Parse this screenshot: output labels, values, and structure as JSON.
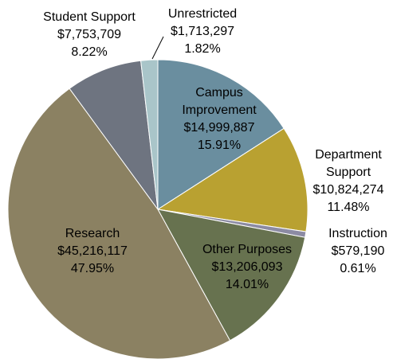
{
  "chart_data": {
    "type": "pie",
    "categories": [
      "Campus Improvement",
      "Department Support",
      "Instruction",
      "Other Purposes",
      "Research",
      "Student Support",
      "Unrestricted"
    ],
    "values": [
      14999887,
      10824274,
      579190,
      13206093,
      45216117,
      7753709,
      1713297
    ],
    "value_labels": [
      "$14,999,887",
      "$10,824,274",
      "$579,190",
      "$13,206,093",
      "$45,216,117",
      "$7,753,709",
      "$1,713,297"
    ],
    "percents": [
      15.91,
      11.48,
      0.61,
      14.01,
      47.95,
      8.22,
      1.82
    ],
    "percent_labels": [
      "15.91%",
      "11.48%",
      "0.61%",
      "14.01%",
      "47.95%",
      "8.22%",
      "1.82%"
    ],
    "colors": [
      "#6a8e9f",
      "#b9a131",
      "#8c8ba3",
      "#67724f",
      "#8b8162",
      "#6e7480",
      "#a9c5c9"
    ]
  }
}
